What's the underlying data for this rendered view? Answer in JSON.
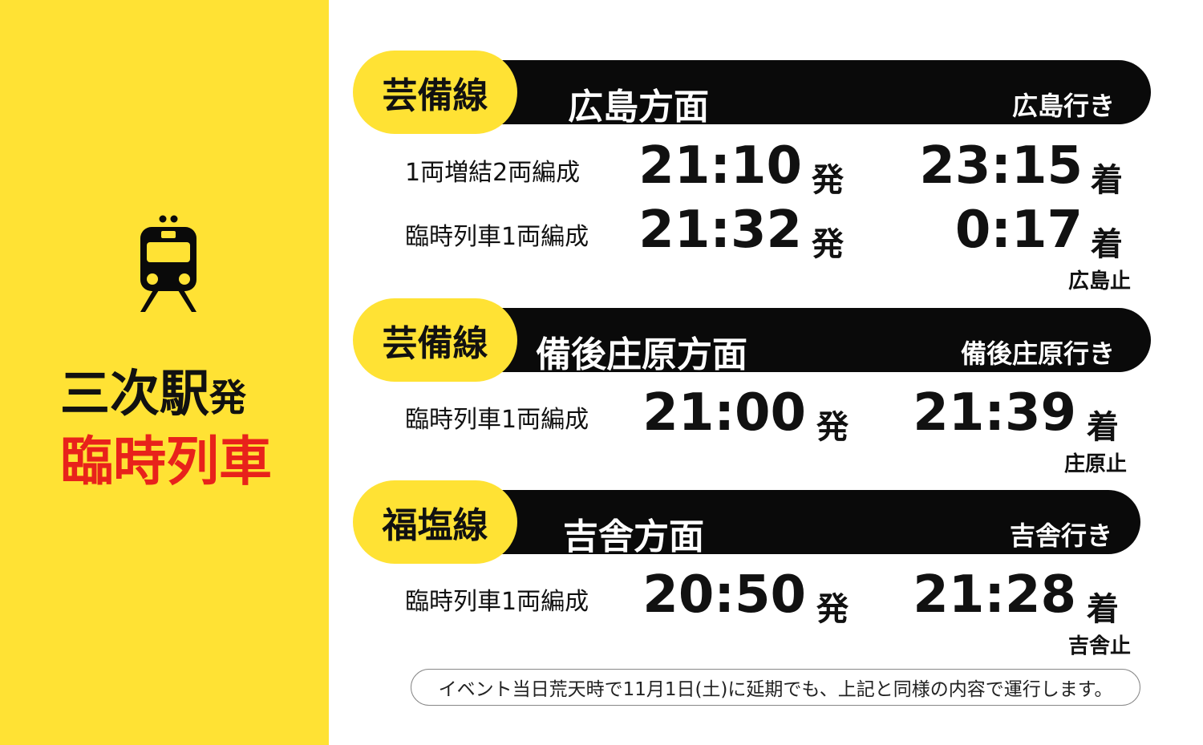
{
  "colors": {
    "yellow": "#FFE234",
    "red": "#E8221B",
    "black": "#0a0a0a"
  },
  "side": {
    "icon": "train-icon",
    "title_station": "三次駅",
    "title_suffix": "発",
    "title_main": "臨時列車"
  },
  "sections": [
    {
      "line": "芸備線",
      "direction": "広島方面",
      "destination": "広島行き",
      "rows": [
        {
          "label": "1両増結2両編成",
          "dep": "21:10",
          "dep_mark": "発",
          "arr": "23:15",
          "arr_mark": "着"
        },
        {
          "label": "臨時列車1両編成",
          "dep": "21:32",
          "dep_mark": "発",
          "arr": "0:17",
          "arr_mark": "着"
        }
      ],
      "stop": "広島止"
    },
    {
      "line": "芸備線",
      "direction": "備後庄原方面",
      "destination": "備後庄原行き",
      "rows": [
        {
          "label": "臨時列車1両編成",
          "dep": "21:00",
          "dep_mark": "発",
          "arr": "21:39",
          "arr_mark": "着"
        }
      ],
      "stop": "庄原止"
    },
    {
      "line": "福塩線",
      "direction": "吉舎方面",
      "destination": "吉舎行き",
      "rows": [
        {
          "label": "臨時列車1両編成",
          "dep": "20:50",
          "dep_mark": "発",
          "arr": "21:28",
          "arr_mark": "着"
        }
      ],
      "stop": "吉舎止"
    }
  ],
  "note": "イベント当日荒天時で11月1日(土)に延期でも、上記と同様の内容で運行します。"
}
